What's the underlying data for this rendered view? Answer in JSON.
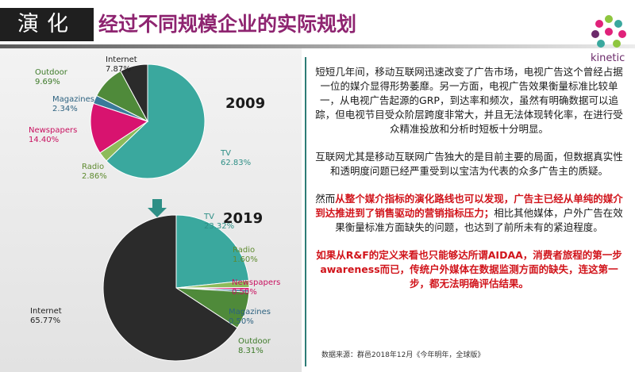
{
  "header": {
    "tag": "演化",
    "title": "经过不同规模企业的实际规划"
  },
  "logo": {
    "text": "kinetic"
  },
  "chart_data": [
    {
      "type": "pie",
      "title": "2009",
      "slices": [
        {
          "name": "TV",
          "value": 62.83,
          "label": "62.83%",
          "color": "#3aa89e"
        },
        {
          "name": "Radio",
          "value": 2.86,
          "label": "2.86%",
          "color": "#8dbb5a"
        },
        {
          "name": "Newspapers",
          "value": 14.4,
          "label": "14.40%",
          "color": "#d8136f"
        },
        {
          "name": "Magazines",
          "value": 2.34,
          "label": "2.34%",
          "color": "#3a7a9a"
        },
        {
          "name": "Outdoor",
          "value": 9.69,
          "label": "9.69%",
          "color": "#4f8a3a"
        },
        {
          "name": "Internet",
          "value": 7.87,
          "label": "7.87%",
          "color": "#2b2b2b"
        }
      ]
    },
    {
      "type": "pie",
      "title": "2019",
      "slices": [
        {
          "name": "TV",
          "value": 23.32,
          "label": "23.32%",
          "color": "#3aa89e"
        },
        {
          "name": "Radio",
          "value": 1.6,
          "label": "1.60%",
          "color": "#8dbb5a"
        },
        {
          "name": "Newspapers",
          "value": 0.5,
          "label": "0.50%",
          "color": "#d8136f"
        },
        {
          "name": "Magazines",
          "value": 0.5,
          "label": "0.50%",
          "color": "#3a7a9a"
        },
        {
          "name": "Outdoor",
          "value": 8.31,
          "label": "8.31%",
          "color": "#4f8a3a"
        },
        {
          "name": "Internet",
          "value": 65.77,
          "label": "65.77%",
          "color": "#2b2b2b"
        }
      ]
    }
  ],
  "label_colors": {
    "TV": "#2e8f86",
    "Radio": "#5e8a2e",
    "Newspapers": "#c8105f",
    "Magazines": "#2d6280",
    "Outdoor": "#3c7a28",
    "Internet": "#1f1f1f"
  },
  "text": {
    "p1": "短短几年间，移动互联网迅速改变了广告市场，电视广告这个曾经占据一位的媒介显得形势萎靡。另一方面，电视广告效果衡量标准比较单一，从电视广告起源的GRP，到达率和频次，虽然有明确数据可以追踪，但电视节目受众阶层跨度非常大，并且无法体现转化率，在进行受众精准投放和分析时短板十分明显。",
    "p2": "互联网尤其是移动互联网广告独大的是目前主要的局面，但数据真实性和透明度问题已经严重受到以宝洁为代表的众多广告主的质疑。",
    "p3_a": "然而",
    "p3_red": "从整个媒介指标的演化路线也可以发现，广告主已经从单纯的媒介到达推进到了销售驱动的营销指标压力；",
    "p3_b": "相比其他媒体，户外广告在效果衡量标准方面缺失的问题，也达到了前所未有的紧迫程度。",
    "p4": "如果从R&F的定义来看也只能够达所谓AIDAA，消费者旅程的第一步awareness而已，传统户外媒体在数据监测方面的缺失，连这第一步，都无法明确评估结果。"
  },
  "source": "数据来源：群邑2018年12月《今年明年，全球版》"
}
